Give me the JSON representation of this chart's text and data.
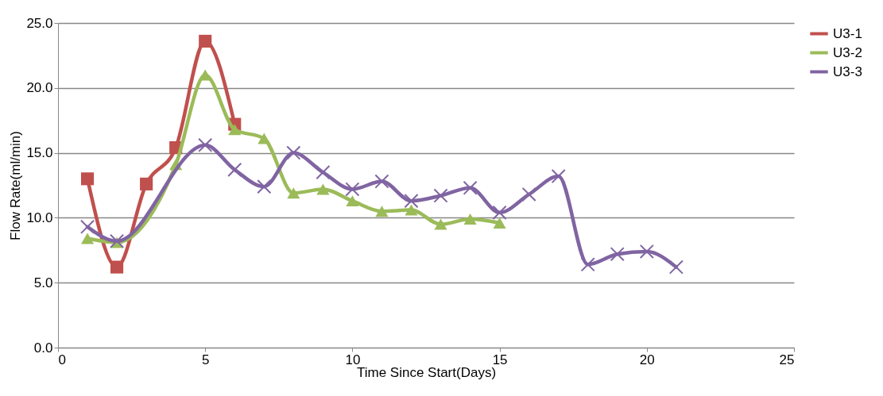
{
  "chart_data": {
    "type": "line",
    "xlabel": "Time Since Start(Days)",
    "ylabel": "Flow Rate(ml/min)",
    "xlim": [
      0,
      25
    ],
    "xticks": [
      0,
      5,
      10,
      15,
      20,
      25
    ],
    "ylim": [
      0,
      25
    ],
    "yticks": [
      {
        "value": 0,
        "label": "0.0"
      },
      {
        "value": 5,
        "label": "5.0"
      },
      {
        "value": 10,
        "label": "10.0"
      },
      {
        "value": 15,
        "label": "15.0"
      },
      {
        "value": 20,
        "label": "20.0"
      },
      {
        "value": 25,
        "label": "25.0"
      }
    ],
    "grid": "y",
    "legend": "right",
    "series": [
      {
        "name": "U3-1",
        "color": "#c0504d",
        "marker": "square",
        "x": [
          1,
          2,
          3,
          4,
          5,
          6
        ],
        "values": [
          13.0,
          6.2,
          12.6,
          15.4,
          23.6,
          17.2
        ]
      },
      {
        "name": "U3-2",
        "color": "#9bbb59",
        "marker": "triangle",
        "x": [
          1,
          2,
          4,
          5,
          6,
          7,
          8,
          9,
          10,
          11,
          12,
          13,
          14,
          15
        ],
        "values": [
          8.4,
          8.1,
          14.1,
          21.0,
          16.8,
          16.1,
          11.9,
          12.2,
          11.3,
          10.5,
          10.6,
          9.5,
          9.9,
          9.6
        ]
      },
      {
        "name": "U3-3",
        "color": "#8064a2",
        "marker": "cross",
        "x": [
          1,
          2,
          5,
          6,
          7,
          8,
          9,
          10,
          11,
          12,
          13,
          14,
          15,
          16,
          17,
          18,
          19,
          20,
          21
        ],
        "values": [
          9.3,
          8.2,
          15.6,
          13.7,
          12.4,
          15.0,
          13.5,
          12.2,
          12.8,
          11.3,
          11.7,
          12.3,
          10.4,
          11.8,
          13.2,
          6.4,
          7.2,
          7.4,
          6.2
        ]
      }
    ]
  }
}
